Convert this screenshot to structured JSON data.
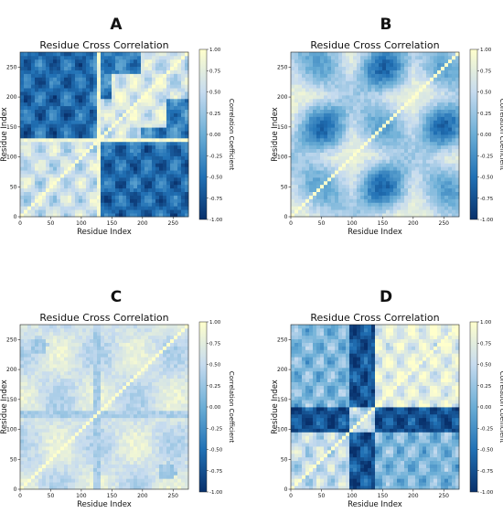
{
  "chart_data": [
    {
      "panel": "A",
      "type": "heatmap",
      "title": "Residue Cross Correlation",
      "xlabel": "Residue Index",
      "ylabel": "Residue Index",
      "xlim": [
        0,
        275
      ],
      "ylim": [
        0,
        275
      ],
      "xticks": [
        0,
        50,
        100,
        150,
        200,
        250
      ],
      "yticks": [
        0,
        50,
        100,
        150,
        200,
        250
      ],
      "colorbar": {
        "label": "Correlation Coefficient",
        "range": [
          -1.0,
          1.0
        ],
        "ticks": [
          "1.00",
          "0.75",
          "0.50",
          "0.25",
          "0.00",
          "-0.25",
          "-0.50",
          "-0.75",
          "-1.00"
        ]
      },
      "pattern": "block-negative"
    },
    {
      "panel": "B",
      "type": "heatmap",
      "title": "Residue Cross Correlation",
      "xlabel": "Residue Index",
      "ylabel": "Residue Index",
      "xlim": [
        0,
        275
      ],
      "ylim": [
        0,
        275
      ],
      "xticks": [
        0,
        50,
        100,
        150,
        200,
        250
      ],
      "yticks": [
        0,
        50,
        100,
        150,
        200,
        250
      ],
      "colorbar": {
        "label": "Correlation Coefficient",
        "range": [
          -1.0,
          1.0
        ],
        "ticks": [
          "1.00",
          "0.75",
          "0.50",
          "0.25",
          "0.00",
          "-0.25",
          "-0.50",
          "-0.75",
          "-1.00"
        ]
      },
      "pattern": "periodic-spots"
    },
    {
      "panel": "C",
      "type": "heatmap",
      "title": "Residue Cross Correlation",
      "xlabel": "Residue Index",
      "ylabel": "Residue Index",
      "xlim": [
        0,
        275
      ],
      "ylim": [
        0,
        275
      ],
      "xticks": [
        0,
        50,
        100,
        150,
        200,
        250
      ],
      "yticks": [
        0,
        50,
        100,
        150,
        200,
        250
      ],
      "colorbar": {
        "label": "Correlation Coefficient",
        "range": [
          -1.0,
          1.0
        ],
        "ticks": [
          "1.00",
          "0.75",
          "0.50",
          "0.25",
          "0.00",
          "-0.25",
          "-0.50",
          "-0.75",
          "-1.00"
        ]
      },
      "pattern": "weak-positive"
    },
    {
      "panel": "D",
      "type": "heatmap",
      "title": "Residue Cross Correlation",
      "xlabel": "Residue Index",
      "ylabel": "Residue Index",
      "xlim": [
        0,
        275
      ],
      "ylim": [
        0,
        275
      ],
      "xticks": [
        0,
        50,
        100,
        150,
        200,
        250
      ],
      "yticks": [
        0,
        50,
        100,
        150,
        200,
        250
      ],
      "colorbar": {
        "label": "Correlation Coefficient",
        "range": [
          -1.0,
          1.0
        ],
        "ticks": [
          "1.00",
          "0.75",
          "0.50",
          "0.25",
          "0.00",
          "-0.25",
          "-0.50",
          "-0.75",
          "-1.00"
        ]
      },
      "pattern": "strong-blocks"
    }
  ],
  "colormap": [
    "#08306b",
    "#2171b5",
    "#6baed6",
    "#c6dbef",
    "#ffffcc"
  ]
}
